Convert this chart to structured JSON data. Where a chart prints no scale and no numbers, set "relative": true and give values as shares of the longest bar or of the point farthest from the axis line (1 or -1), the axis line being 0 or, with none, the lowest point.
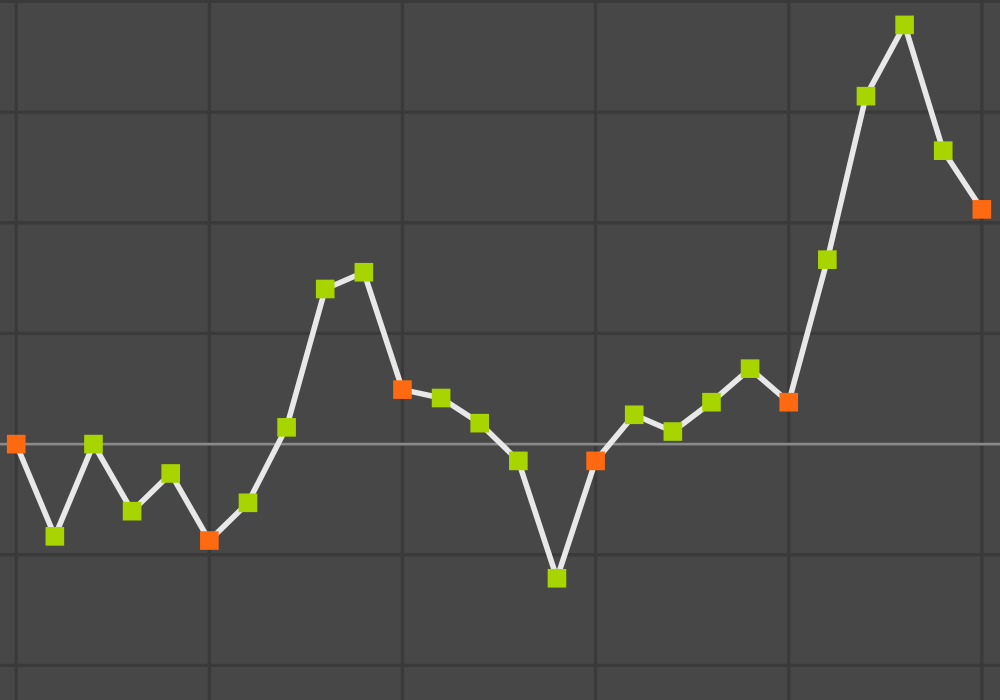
{
  "chart_data": {
    "type": "line",
    "relative": true,
    "grid": true,
    "line_style": "solid",
    "marker": "square",
    "categories": [
      null,
      null,
      null,
      null,
      null,
      null,
      null,
      null,
      null,
      null,
      null,
      null,
      null,
      null,
      null,
      null,
      null,
      null,
      null,
      null,
      null,
      null,
      null,
      null,
      null,
      null
    ],
    "series": [
      {
        "color": "#e8e8e8",
        "colors": [
          "#ff6a10",
          "#a8d400",
          "#a8d400",
          "#a8d400",
          "#a8d400",
          "#ff6a10",
          "#a8d400",
          "#a8d400",
          "#a8d400",
          "#a8d400",
          "#ff6a10",
          "#a8d400",
          "#a8d400",
          "#a8d400",
          "#a8d400",
          "#ff6a10",
          "#a8d400",
          "#a8d400",
          "#a8d400",
          "#a8d400",
          "#ff6a10",
          "#a8d400",
          "#a8d400",
          "#a8d400",
          "#a8d400",
          "#ff6a10"
        ],
        "values": [
          0,
          -0.22,
          0,
          -0.16,
          -0.07,
          -0.23,
          -0.14,
          0.04,
          0.37,
          0.41,
          0.13,
          0.11,
          0.05,
          -0.04,
          -0.32,
          -0.04,
          0.07,
          0.03,
          0.1,
          0.18,
          0.1,
          0.44,
          0.83,
          1,
          0.7,
          0.56
        ]
      }
    ]
  }
}
